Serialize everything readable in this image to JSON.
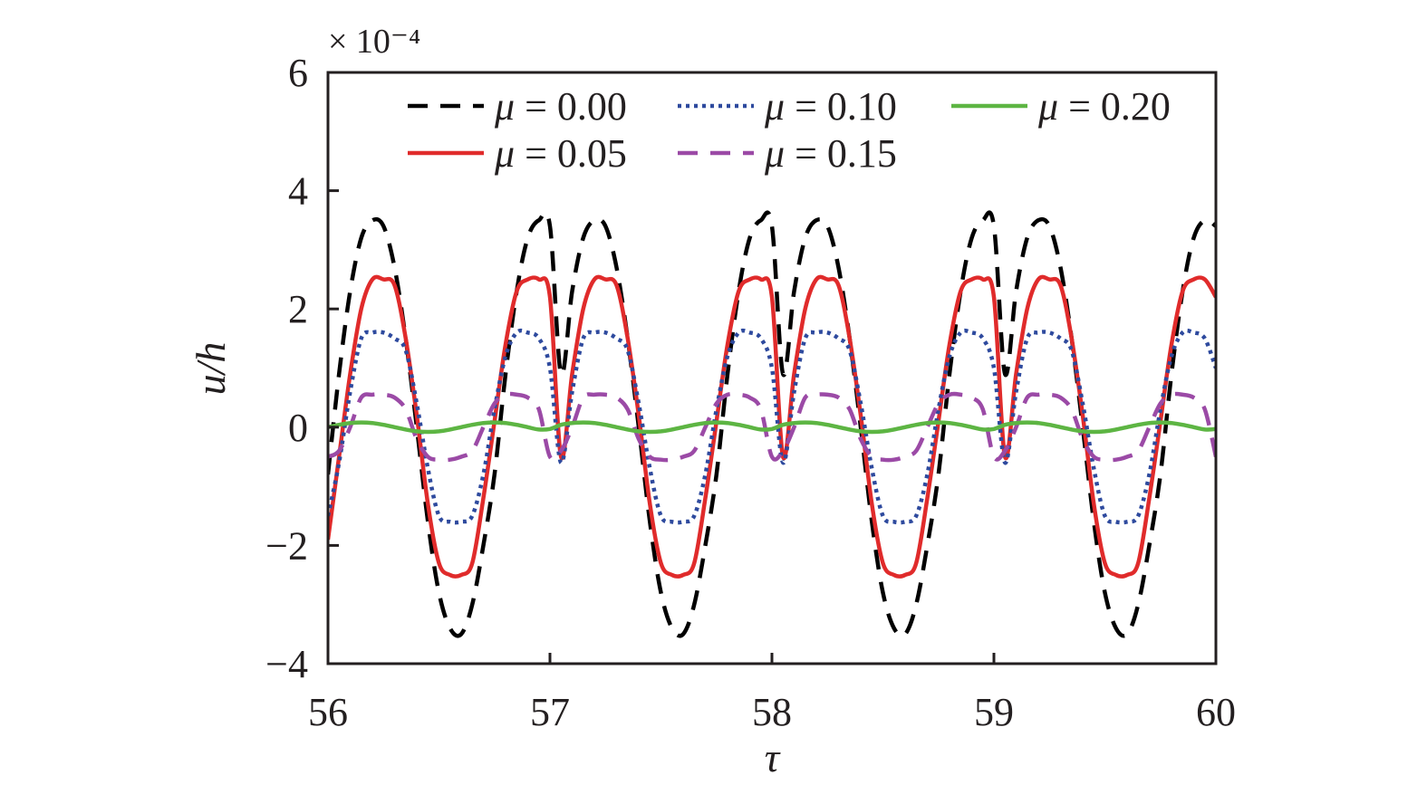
{
  "chart_data": {
    "type": "line",
    "title": "",
    "xlabel": "τ",
    "ylabel": "u/h",
    "y_multiplier": "× 10⁻⁴",
    "xlim": [
      56,
      60
    ],
    "ylim": [
      -4,
      6
    ],
    "xticks": [
      "56",
      "57",
      "58",
      "59",
      "60"
    ],
    "yticks": [
      "−4",
      "−2",
      "0",
      "2",
      "4",
      "6"
    ],
    "grid": false,
    "legend_position": "top",
    "legend_symbol": "μ",
    "period": 1.0,
    "sample_period_points": {
      "description_x": "phase within one period (τ - 56), values in units of 1e-4",
      "x": [
        0.0,
        0.05,
        0.1,
        0.15,
        0.2,
        0.25,
        0.3,
        0.35,
        0.4,
        0.45,
        0.5,
        0.55,
        0.6,
        0.65,
        0.7,
        0.75,
        0.8,
        0.85,
        0.9,
        0.95,
        1.0
      ]
    },
    "series": [
      {
        "name": "μ = 0.00",
        "color": "#000000",
        "style": "dashed",
        "values": [
          -0.8,
          0.9,
          2.3,
          3.2,
          3.5,
          3.4,
          2.7,
          1.5,
          0.0,
          -1.6,
          -2.8,
          -3.4,
          -3.5,
          -3.0,
          -2.0,
          -0.8,
          0.9,
          2.3,
          3.2,
          3.5,
          3.4
        ]
      },
      {
        "name": "μ = 0.05",
        "color": "#e02b2b",
        "style": "solid",
        "values": [
          -1.9,
          -0.5,
          0.9,
          2.0,
          2.5,
          2.5,
          2.4,
          1.5,
          0.2,
          -1.3,
          -2.3,
          -2.5,
          -2.5,
          -2.3,
          -1.2,
          0.1,
          1.4,
          2.3,
          2.5,
          2.5,
          2.2
        ]
      },
      {
        "name": "μ = 0.10",
        "color": "#2e4a9e",
        "style": "dotted",
        "values": [
          -1.5,
          -0.6,
          0.6,
          1.5,
          1.6,
          1.6,
          1.5,
          1.3,
          0.4,
          -0.7,
          -1.5,
          -1.6,
          -1.6,
          -1.5,
          -0.8,
          0.3,
          1.2,
          1.6,
          1.6,
          1.5,
          1.0
        ]
      },
      {
        "name": "μ = 0.15",
        "color": "#9b4aa6",
        "style": "dashed",
        "values": [
          -0.5,
          -0.4,
          0.0,
          0.5,
          0.55,
          0.55,
          0.5,
          0.3,
          -0.2,
          -0.5,
          -0.55,
          -0.55,
          -0.5,
          -0.4,
          0.0,
          0.4,
          0.55,
          0.55,
          0.5,
          0.3,
          -0.5
        ]
      },
      {
        "name": "μ = 0.20",
        "color": "#5db543",
        "style": "solid",
        "values": [
          0.0,
          0.04,
          0.07,
          0.08,
          0.07,
          0.04,
          0.0,
          -0.04,
          -0.07,
          -0.08,
          -0.07,
          -0.04,
          0.0,
          0.04,
          0.07,
          0.08,
          0.07,
          0.04,
          0.0,
          -0.04,
          -0.03
        ]
      }
    ]
  }
}
